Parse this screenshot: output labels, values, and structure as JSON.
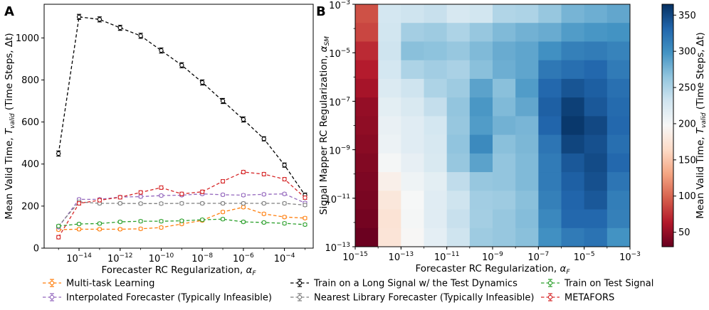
{
  "chart_data": [
    {
      "panel": "A",
      "type": "line",
      "xlabel": "Forecaster RC Regularization, ",
      "xlabel_math": "α",
      "xlabel_sub": "F",
      "ylabel": "Mean Valid Time, ",
      "ylabel_math": "T",
      "ylabel_sub": "valid",
      "ylabel_tail": " (Time Steps, Δt)",
      "x_log10": [
        -15,
        -14,
        -13,
        -12,
        -11,
        -10,
        -9,
        -8,
        -7,
        -6,
        -5,
        -4,
        -3
      ],
      "x_tick_exps": [
        "-14",
        "-12",
        "-10",
        "-8",
        "-6",
        "-4"
      ],
      "xlim_log10": [
        -15.7,
        -2.6
      ],
      "ylim": [
        0,
        1160
      ],
      "y_ticks": [
        0,
        200,
        400,
        600,
        800,
        1000
      ],
      "legend_position": "below",
      "series": [
        {
          "name": "Multi-task Learning",
          "color": "#ff7f0e",
          "values": [
            88,
            90,
            90,
            90,
            92,
            98,
            115,
            132,
            172,
            195,
            163,
            148,
            143
          ],
          "err": [
            6,
            6,
            6,
            6,
            6,
            6,
            6,
            6,
            6,
            6,
            6,
            6,
            6
          ]
        },
        {
          "name": "Interpolated Forecaster (Typically Infeasible)",
          "color": "#9467bd",
          "values": [
            100,
            232,
            232,
            243,
            245,
            250,
            252,
            258,
            254,
            252,
            256,
            258,
            215
          ],
          "err": [
            6,
            6,
            6,
            6,
            6,
            6,
            6,
            6,
            6,
            6,
            6,
            6,
            6
          ]
        },
        {
          "name": "Train on a Long Signal w/ the Test Dynamics",
          "color": "#000000",
          "values": [
            450,
            1100,
            1088,
            1048,
            1010,
            940,
            870,
            788,
            700,
            612,
            520,
            395,
            252
          ],
          "err": [
            12,
            12,
            12,
            12,
            12,
            12,
            12,
            12,
            12,
            12,
            10,
            10,
            10
          ]
        },
        {
          "name": "Nearest Library Forecaster (Typically Infeasible)",
          "color": "#7f7f7f",
          "values": [
            105,
            220,
            213,
            213,
            212,
            212,
            213,
            213,
            213,
            213,
            213,
            213,
            205
          ],
          "err": [
            6,
            6,
            6,
            6,
            6,
            6,
            6,
            6,
            6,
            6,
            6,
            6,
            6
          ]
        },
        {
          "name": "Train on Test Signal",
          "color": "#2ca02c",
          "values": [
            105,
            115,
            117,
            125,
            128,
            128,
            130,
            135,
            138,
            125,
            122,
            118,
            112
          ],
          "err": [
            6,
            6,
            6,
            6,
            6,
            6,
            6,
            6,
            6,
            6,
            6,
            6,
            6
          ]
        },
        {
          "name": "METAFORS",
          "color": "#d62728",
          "values": [
            52,
            213,
            228,
            242,
            265,
            288,
            258,
            268,
            318,
            362,
            352,
            328,
            240
          ],
          "err": [
            8,
            8,
            8,
            8,
            8,
            8,
            8,
            8,
            8,
            8,
            8,
            8,
            8
          ]
        }
      ],
      "legend_order": [
        0,
        1,
        2,
        3,
        4,
        5
      ]
    },
    {
      "panel": "B",
      "type": "heatmap",
      "xlabel": "Forecaster RC Regularization, ",
      "xlabel_math": "α",
      "xlabel_sub": "F",
      "ylabel": "Signal Mapper RC Regularization, ",
      "ylabel_math": "α",
      "ylabel_sub": "SM",
      "x_log10_range": [
        -15,
        -3
      ],
      "y_log10_range": [
        -13,
        -3
      ],
      "x_tick_exps": [
        "-15",
        "-13",
        "-11",
        "-9",
        "-7",
        "-5",
        "-3"
      ],
      "y_tick_exps": [
        "-3",
        "-5",
        "-7",
        "-9",
        "-11",
        "-13"
      ],
      "colorbar_label": "Mean Valid Time, ",
      "colorbar_label_math": "T",
      "colorbar_label_sub": "valid",
      "colorbar_label_tail": " (Time Steps, Δt)",
      "colorbar_range": [
        30,
        365
      ],
      "colorbar_ticks": [
        50,
        100,
        150,
        200,
        250,
        300,
        350
      ],
      "row_labels_note": "rows from top (alpha_SM = 1e-3) to bottom (1e-13)",
      "values": [
        [
          90,
          228,
          232,
          236,
          226,
          230,
          248,
          250,
          262,
          276,
          280,
          285
        ],
        [
          85,
          230,
          255,
          258,
          250,
          262,
          272,
          278,
          282,
          292,
          296,
          298
        ],
        [
          72,
          232,
          268,
          266,
          262,
          272,
          282,
          286,
          300,
          312,
          315,
          310
        ],
        [
          65,
          228,
          250,
          256,
          252,
          268,
          280,
          286,
          318,
          325,
          330,
          316
        ],
        [
          58,
          222,
          232,
          250,
          258,
          288,
          268,
          292,
          330,
          342,
          336,
          324
        ],
        [
          50,
          215,
          224,
          238,
          264,
          295,
          272,
          285,
          335,
          355,
          340,
          328
        ],
        [
          48,
          210,
          218,
          228,
          262,
          292,
          278,
          275,
          332,
          360,
          350,
          330
        ],
        [
          45,
          207,
          218,
          226,
          265,
          305,
          268,
          274,
          320,
          352,
          345,
          325
        ],
        [
          42,
          200,
          212,
          224,
          262,
          288,
          264,
          272,
          316,
          340,
          348,
          330
        ],
        [
          40,
          188,
          205,
          215,
          240,
          262,
          264,
          272,
          316,
          335,
          345,
          320
        ],
        [
          38,
          178,
          198,
          218,
          232,
          256,
          258,
          268,
          312,
          332,
          340,
          314
        ],
        [
          36,
          174,
          200,
          218,
          236,
          255,
          262,
          270,
          306,
          330,
          330,
          312
        ],
        [
          32,
          175,
          196,
          214,
          232,
          258,
          262,
          268,
          300,
          316,
          322,
          298
        ]
      ]
    }
  ],
  "panel_labels": {
    "a": "A",
    "b": "B"
  }
}
